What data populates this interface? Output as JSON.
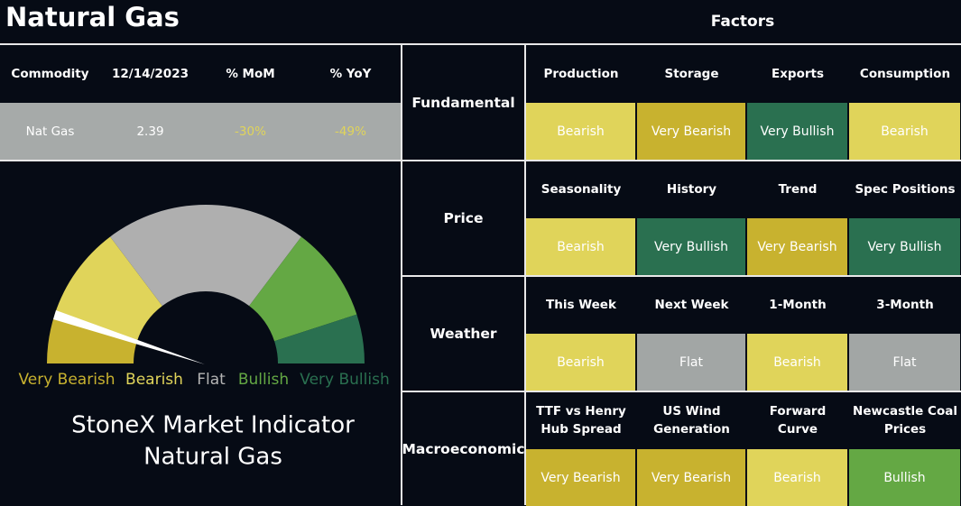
{
  "header": {
    "title": "Natural Gas"
  },
  "summary_table": {
    "columns": [
      "Commodity",
      "12/14/2023",
      "% MoM",
      "% YoY"
    ],
    "rows": [
      [
        "Nat Gas",
        "2.39",
        "-30%",
        "-49%"
      ]
    ]
  },
  "gauge": {
    "labels": [
      {
        "text": "Very Bearish",
        "color": "#c8b22f"
      },
      {
        "text": "Bearish",
        "color": "#e0d45a"
      },
      {
        "text": "Flat",
        "color": "#b4b4b4"
      },
      {
        "text": "Bullish",
        "color": "#64a844"
      },
      {
        "text": "Very Bullish",
        "color": "#2a7050"
      }
    ],
    "caption_lines": [
      "StoneX Market Indicator",
      "Natural Gas"
    ]
  },
  "factors": {
    "title": "Factors",
    "groups": [
      {
        "name": "Fundamental",
        "factors": [
          {
            "label_lines": [
              "Production"
            ],
            "rating": "Bearish",
            "color": "#e0d45a"
          },
          {
            "label_lines": [
              "Storage"
            ],
            "rating": "Very Bearish",
            "color": "#c8b22f"
          },
          {
            "label_lines": [
              "Exports"
            ],
            "rating": "Very Bullish",
            "color": "#2a7050"
          },
          {
            "label_lines": [
              "Consumption"
            ],
            "rating": "Bearish",
            "color": "#e0d45a"
          }
        ]
      },
      {
        "name": "Price",
        "factors": [
          {
            "label_lines": [
              "Seasonality"
            ],
            "rating": "Bearish",
            "color": "#e0d45a"
          },
          {
            "label_lines": [
              "History"
            ],
            "rating": "Very Bullish",
            "color": "#2a7050"
          },
          {
            "label_lines": [
              "Trend"
            ],
            "rating": "Very Bearish",
            "color": "#c8b22f"
          },
          {
            "label_lines": [
              "Spec Positions"
            ],
            "rating": "Very Bullish",
            "color": "#2a7050"
          }
        ]
      },
      {
        "name": "Weather",
        "factors": [
          {
            "label_lines": [
              "This Week"
            ],
            "rating": "Bearish",
            "color": "#e0d45a"
          },
          {
            "label_lines": [
              "Next Week"
            ],
            "rating": "Flat",
            "color": "#a2a6a5"
          },
          {
            "label_lines": [
              "1-Month"
            ],
            "rating": "Bearish",
            "color": "#e0d45a"
          },
          {
            "label_lines": [
              "3-Month"
            ],
            "rating": "Flat",
            "color": "#a2a6a5"
          }
        ]
      },
      {
        "name": "Macroeconomic",
        "factors": [
          {
            "label_lines": [
              "TTF vs Henry",
              "Hub Spread"
            ],
            "rating": "Very Bearish",
            "color": "#c8b22f"
          },
          {
            "label_lines": [
              "US Wind",
              "Generation"
            ],
            "rating": "Very Bearish",
            "color": "#c8b22f"
          },
          {
            "label_lines": [
              "Forward",
              "Curve"
            ],
            "rating": "Bearish",
            "color": "#e0d45a"
          },
          {
            "label_lines": [
              "Newcastle Coal",
              "Prices"
            ],
            "rating": "Bullish",
            "color": "#64a844"
          }
        ]
      }
    ]
  }
}
